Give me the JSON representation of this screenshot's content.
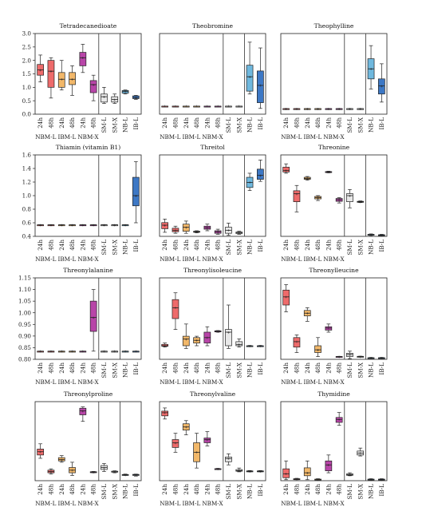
{
  "figure": {
    "x_tick_labels": [
      "24h",
      "48h",
      "24h",
      "48h",
      "24h",
      "48h",
      "SM-L",
      "SM-X",
      "NB-L",
      "IB-L"
    ],
    "group_labels": [
      "NBM-L",
      "IBM-L",
      "NBM-X"
    ],
    "colors": {
      "NBM_L": "#ee6b6b",
      "IBM_L": "#f2b86a",
      "NBM_X": "#b845a8",
      "SM": "#e8e8e8",
      "NB_L": "#6fb8de",
      "IB_L": "#3d78c5"
    }
  },
  "chart_data": [
    {
      "type": "box",
      "title": "Tetradecanedioate",
      "ylim": [
        0,
        3.0
      ],
      "yticks": [
        "0.0",
        "0.5",
        "1.0",
        "1.5",
        "2.0",
        "2.5",
        "3.0"
      ],
      "boxes": [
        [
          1.2,
          1.45,
          1.65,
          1.85,
          2.2
        ],
        [
          0.6,
          1.0,
          1.6,
          2.0,
          2.1
        ],
        [
          0.9,
          1.0,
          1.3,
          1.55,
          2.0
        ],
        [
          0.7,
          1.1,
          1.3,
          1.55,
          1.8
        ],
        [
          1.55,
          1.8,
          2.1,
          2.3,
          2.6
        ],
        [
          0.5,
          0.8,
          1.1,
          1.25,
          1.45
        ],
        [
          0.4,
          0.45,
          0.65,
          0.75,
          1.0
        ],
        [
          0.4,
          0.45,
          0.55,
          0.65,
          0.75
        ],
        [
          0.75,
          0.78,
          0.85,
          0.88,
          0.9
        ],
        [
          0.55,
          0.58,
          0.62,
          0.68,
          0.7
        ]
      ]
    },
    {
      "type": "box",
      "title": "Theobromine",
      "ylim": [
        0.6,
        2.0
      ],
      "yticks": [],
      "boxes": [
        [
          0.74,
          0.74,
          0.74,
          0.74,
          0.74
        ],
        [
          0.74,
          0.74,
          0.74,
          0.74,
          0.74
        ],
        [
          0.74,
          0.74,
          0.74,
          0.74,
          0.74
        ],
        [
          0.74,
          0.74,
          0.74,
          0.74,
          0.74
        ],
        [
          0.74,
          0.74,
          0.74,
          0.74,
          0.74
        ],
        [
          0.74,
          0.74,
          0.74,
          0.74,
          0.74
        ],
        [
          0.74,
          0.74,
          0.74,
          0.74,
          0.74
        ],
        [
          0.74,
          0.74,
          0.74,
          0.74,
          0.74
        ],
        [
          0.95,
          1.0,
          1.25,
          1.45,
          1.85
        ],
        [
          0.7,
          0.8,
          1.1,
          1.35,
          1.75
        ]
      ]
    },
    {
      "type": "box",
      "title": "Theophylline",
      "ylim": [
        0.6,
        1.4
      ],
      "yticks": [],
      "boxes": [
        [
          0.655,
          0.655,
          0.655,
          0.655,
          0.655
        ],
        [
          0.655,
          0.655,
          0.655,
          0.655,
          0.655
        ],
        [
          0.655,
          0.655,
          0.655,
          0.655,
          0.655
        ],
        [
          0.655,
          0.655,
          0.655,
          0.655,
          0.655
        ],
        [
          0.655,
          0.655,
          0.655,
          0.655,
          0.655
        ],
        [
          0.655,
          0.655,
          0.655,
          0.655,
          0.655
        ],
        [
          0.655,
          0.655,
          0.655,
          0.655,
          0.655
        ],
        [
          0.655,
          0.655,
          0.655,
          0.655,
          0.655
        ],
        [
          0.85,
          0.95,
          1.05,
          1.15,
          1.28
        ],
        [
          0.72,
          0.8,
          0.88,
          0.95,
          1.1
        ]
      ]
    },
    {
      "type": "box",
      "title": "Thiamin (vitamin B1)",
      "ylim": [
        0.4,
        1.6
      ],
      "yticks": [
        "0.4",
        "0.6",
        "0.8",
        "1.0",
        "1.2",
        "1.4",
        "1.6"
      ],
      "boxes": [
        [
          0.57,
          0.57,
          0.57,
          0.57,
          0.57
        ],
        [
          0.57,
          0.57,
          0.57,
          0.57,
          0.57
        ],
        [
          0.57,
          0.57,
          0.57,
          0.57,
          0.57
        ],
        [
          0.57,
          0.57,
          0.57,
          0.57,
          0.57
        ],
        [
          0.57,
          0.57,
          0.57,
          0.57,
          0.57
        ],
        [
          0.57,
          0.57,
          0.57,
          0.57,
          0.57
        ],
        [
          0.57,
          0.57,
          0.57,
          0.57,
          0.57
        ],
        [
          0.57,
          0.57,
          0.57,
          0.57,
          0.57
        ],
        [
          0.57,
          0.57,
          0.57,
          0.57,
          0.57
        ],
        [
          0.6,
          0.85,
          1.0,
          1.27,
          1.5
        ]
      ]
    },
    {
      "type": "box",
      "title": "Threitol",
      "ylim": [
        0,
        8
      ],
      "yticks": [],
      "boxes": [
        [
          0.4,
          0.75,
          1.1,
          1.35,
          1.7
        ],
        [
          0.3,
          0.45,
          0.6,
          0.8,
          1.0
        ],
        [
          0.3,
          0.5,
          0.9,
          1.2,
          1.5
        ],
        [
          0.35,
          0.4,
          0.45,
          0.5,
          0.55
        ],
        [
          0.55,
          0.7,
          0.85,
          1.0,
          1.2
        ],
        [
          0.2,
          0.3,
          0.45,
          0.55,
          0.7
        ],
        [
          0.1,
          0.3,
          0.6,
          0.9,
          1.3
        ],
        [
          0.2,
          0.28,
          0.35,
          0.42,
          0.5
        ],
        [
          4.5,
          4.8,
          5.3,
          5.8,
          6.2
        ],
        [
          5.4,
          5.6,
          6.0,
          6.6,
          7.5
        ]
      ]
    },
    {
      "type": "box",
      "title": "Threonine",
      "ylim": [
        0,
        2.0
      ],
      "yticks": [],
      "boxes": [
        [
          1.55,
          1.58,
          1.62,
          1.7,
          1.78
        ],
        [
          0.6,
          0.85,
          1.05,
          1.12,
          1.25
        ],
        [
          1.38,
          1.4,
          1.42,
          1.45,
          1.47
        ],
        [
          0.88,
          0.92,
          0.95,
          0.98,
          1.0
        ],
        [
          1.56,
          1.57,
          1.58,
          1.59,
          1.6
        ],
        [
          0.82,
          0.86,
          0.9,
          0.93,
          0.95
        ],
        [
          0.7,
          0.85,
          1.0,
          1.05,
          1.15
        ],
        [
          0.83,
          0.84,
          0.85,
          0.86,
          0.87
        ],
        [
          0.02,
          0.03,
          0.04,
          0.05,
          0.06
        ],
        [
          0.01,
          0.02,
          0.03,
          0.04,
          0.05
        ]
      ]
    },
    {
      "type": "box",
      "title": "Threonylalanine",
      "ylim": [
        0.8,
        1.15
      ],
      "yticks": [
        "0.80",
        "0.85",
        "0.90",
        "0.95",
        "1.00",
        "1.05",
        "1.10",
        "1.15"
      ],
      "boxes": [
        [
          0.835,
          0.835,
          0.835,
          0.835,
          0.835
        ],
        [
          0.835,
          0.835,
          0.835,
          0.835,
          0.835
        ],
        [
          0.835,
          0.835,
          0.835,
          0.835,
          0.835
        ],
        [
          0.835,
          0.835,
          0.835,
          0.835,
          0.835
        ],
        [
          0.835,
          0.835,
          0.835,
          0.835,
          0.835
        ],
        [
          0.835,
          0.92,
          0.98,
          1.05,
          1.1
        ],
        [
          0.835,
          0.835,
          0.835,
          0.835,
          0.835
        ],
        [
          0.835,
          0.835,
          0.835,
          0.835,
          0.835
        ],
        [
          0.835,
          0.835,
          0.835,
          0.835,
          0.835
        ],
        [
          0.835,
          0.835,
          0.835,
          0.835,
          0.835
        ]
      ]
    },
    {
      "type": "box",
      "title": "Threonylisoleucine",
      "ylim": [
        0,
        3.0
      ],
      "yticks": [],
      "boxes": [
        [
          0.45,
          0.48,
          0.5,
          0.55,
          0.6
        ],
        [
          1.1,
          1.5,
          1.9,
          2.2,
          2.45
        ],
        [
          0.4,
          0.5,
          0.75,
          0.85,
          1.3
        ],
        [
          0.5,
          0.6,
          0.7,
          0.8,
          0.85
        ],
        [
          0.5,
          0.6,
          0.8,
          1.0,
          1.2
        ],
        [
          1.0,
          1.01,
          1.03,
          1.05,
          1.06
        ],
        [
          0.4,
          0.5,
          1.0,
          1.1,
          2.0
        ],
        [
          0.45,
          0.5,
          0.55,
          0.65,
          0.75
        ],
        [
          0.47,
          0.48,
          0.49,
          0.5,
          0.51
        ],
        [
          0.47,
          0.48,
          0.49,
          0.5,
          0.51
        ]
      ]
    },
    {
      "type": "box",
      "title": "Threonylleucine",
      "ylim": [
        0,
        6
      ],
      "yticks": [],
      "boxes": [
        [
          3.5,
          4.0,
          4.6,
          5.1,
          5.5
        ],
        [
          0.5,
          0.9,
          1.3,
          1.6,
          1.8
        ],
        [
          2.8,
          3.2,
          3.4,
          3.6,
          3.8
        ],
        [
          0.2,
          0.5,
          0.7,
          1.0,
          1.6
        ],
        [
          2.0,
          2.15,
          2.3,
          2.4,
          2.6
        ],
        [
          0.17,
          0.18,
          0.2,
          0.21,
          0.22
        ],
        [
          0.05,
          0.2,
          0.35,
          0.45,
          0.6
        ],
        [
          0.17,
          0.18,
          0.2,
          0.22,
          0.23
        ],
        [
          0.05,
          0.07,
          0.1,
          0.12,
          0.14
        ],
        [
          0.05,
          0.07,
          0.1,
          0.12,
          0.14
        ]
      ]
    },
    {
      "type": "box",
      "title": "Threonylproline",
      "ylim": [
        0,
        6
      ],
      "yticks": [],
      "boxes": [
        [
          1.7,
          1.95,
          2.2,
          2.4,
          2.8
        ],
        [
          0.5,
          0.6,
          0.7,
          0.8,
          0.9
        ],
        [
          1.4,
          1.5,
          1.6,
          1.75,
          1.9
        ],
        [
          0.4,
          0.6,
          0.8,
          1.0,
          1.4
        ],
        [
          4.5,
          5.0,
          5.3,
          5.5,
          5.6
        ],
        [
          0.6,
          0.62,
          0.65,
          0.68,
          0.7
        ],
        [
          0.7,
          0.85,
          1.0,
          1.15,
          1.3
        ],
        [
          0.6,
          0.65,
          0.7,
          0.72,
          0.75
        ],
        [
          0.4,
          0.42,
          0.45,
          0.47,
          0.5
        ],
        [
          0.35,
          0.4,
          0.45,
          0.48,
          0.5
        ]
      ]
    },
    {
      "type": "box",
      "title": "Threonylvaline",
      "ylim": [
        0,
        2.5
      ],
      "yticks": [],
      "boxes": [
        [
          1.95,
          2.05,
          2.15,
          2.2,
          2.3
        ],
        [
          0.9,
          1.05,
          1.2,
          1.3,
          1.5
        ],
        [
          1.45,
          1.6,
          1.7,
          1.8,
          1.9
        ],
        [
          0.4,
          0.6,
          0.9,
          1.2,
          1.5
        ],
        [
          1.1,
          1.2,
          1.3,
          1.35,
          1.55
        ],
        [
          0.35,
          0.36,
          0.37,
          0.38,
          0.39
        ],
        [
          0.5,
          0.6,
          0.7,
          0.75,
          0.85
        ],
        [
          0.28,
          0.3,
          0.32,
          0.35,
          0.4
        ],
        [
          0.28,
          0.29,
          0.3,
          0.31,
          0.32
        ],
        [
          0.28,
          0.29,
          0.3,
          0.31,
          0.32
        ]
      ]
    },
    {
      "type": "box",
      "title": "Thymidine",
      "ylim": [
        0,
        4.0
      ],
      "yticks": [],
      "boxes": [
        [
          0.05,
          0.15,
          0.35,
          0.6,
          1.0
        ],
        [
          0.05,
          0.06,
          0.08,
          0.1,
          0.12
        ],
        [
          0.05,
          0.25,
          0.4,
          0.65,
          1.0
        ],
        [
          0.03,
          0.05,
          0.06,
          0.08,
          0.1
        ],
        [
          0.4,
          0.5,
          0.8,
          1.0,
          1.3
        ],
        [
          2.8,
          2.95,
          3.1,
          3.2,
          3.45
        ],
        [
          0.25,
          0.27,
          0.3,
          0.35,
          0.4
        ],
        [
          1.25,
          1.3,
          1.4,
          1.5,
          1.65
        ],
        [
          0.02,
          0.04,
          0.06,
          0.08,
          0.1
        ],
        [
          0.02,
          0.04,
          0.06,
          0.08,
          0.1
        ]
      ]
    }
  ]
}
